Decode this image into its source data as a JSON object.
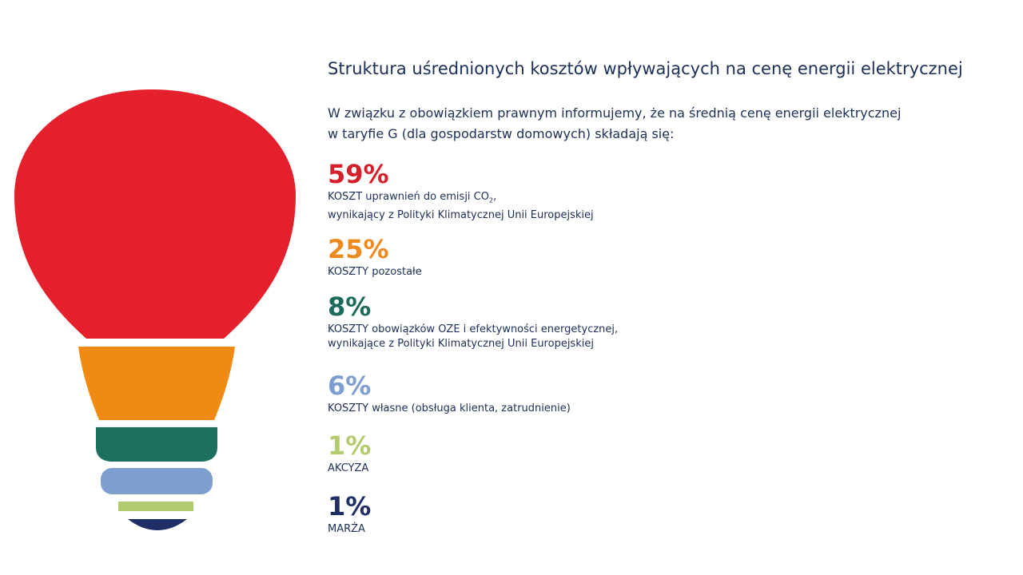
{
  "chart_data": {
    "type": "bar",
    "title": "Struktura uśrednionych kosztów wpływających na cenę energii elektrycznej",
    "subtitle": "W związku z obowiązkiem prawnym informujemy, że na średnią cenę energii elektrycznej w taryfie G (dla gospodarstw domowych) składają się:",
    "categories": [
      "KOSZT uprawnień do emisji CO2, wynikający z Polityki Klimatycznej Unii Europejskiej",
      "KOSZTY pozostałe",
      "KOSZTY obowiązków OZE i efektywności energetycznej, wynikające z Polityki Klimatycznej Unii Europejskiej",
      "KOSZTY własne (obsługa klienta, zatrudnienie)",
      "AKCYZA",
      "MARŻA"
    ],
    "values": [
      59,
      25,
      8,
      6,
      1,
      1
    ],
    "unit": "%",
    "colors": [
      "#e3202b",
      "#f08a12",
      "#1c7060",
      "#7e9ece",
      "#b2cb6e",
      "#1f2f66"
    ]
  },
  "items": [
    {
      "pct": "59%",
      "color": "#d51f2a",
      "line1_pre": "KOSZT uprawnień do emisji CO",
      "line1_sub": "2",
      "line1_post": ",",
      "line2": "wynikający z Polityki Klimatycznej Unii Europejskiej"
    },
    {
      "pct": "25%",
      "color": "#ec8a1d",
      "line1": "KOSZTY pozostałe"
    },
    {
      "pct": "8%",
      "color": "#1c6b5c",
      "line1": "KOSZTY obowiązków OZE i efektywności energetycznej,",
      "line2": "wynikające z Polityki Klimatycznej Unii Europejskiej"
    },
    {
      "pct": "6%",
      "color": "#7e9ece",
      "line1": "KOSZTY własne (obsługa klienta, zatrudnienie)"
    },
    {
      "pct": "1%",
      "color": "#b2cb6e",
      "line1": "AKCYZA"
    },
    {
      "pct": "1%",
      "color": "#1f2f66",
      "line1": "MARŻA"
    }
  ]
}
